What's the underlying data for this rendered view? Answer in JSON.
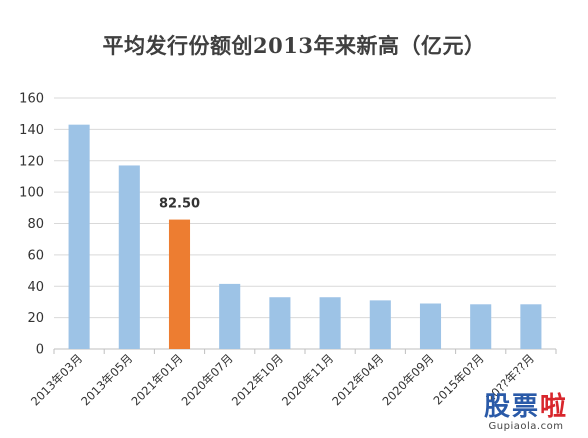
{
  "chart_data": {
    "type": "bar",
    "title": "平均发行份额创2013年来新高（亿元）",
    "categories": [
      "2013年03月",
      "2013年05月",
      "2021年01月",
      "2020年07月",
      "2012年10月",
      "2020年11月",
      "2012年04月",
      "2020年09月",
      "2015年0?月",
      "20??年??月"
    ],
    "values": [
      143,
      117,
      82.5,
      41.5,
      33,
      33,
      31,
      29,
      28.5,
      28.5
    ],
    "highlight_index": 2,
    "data_labels": [
      {
        "index": 2,
        "text": "82.50"
      }
    ],
    "ylim": [
      0,
      160
    ],
    "yticks": [
      0,
      20,
      40,
      60,
      80,
      100,
      120,
      140,
      160
    ],
    "xlabel": "",
    "ylabel": "",
    "grid": true,
    "legend": "none",
    "colors": {
      "bar": "#9dc3e6",
      "highlight": "#ed7d31",
      "grid": "#d9d9d9",
      "axis": "#bfbfbf"
    }
  },
  "watermark": {
    "chars": [
      "股",
      "票",
      "啦"
    ],
    "url": "Gupiaola.com"
  }
}
